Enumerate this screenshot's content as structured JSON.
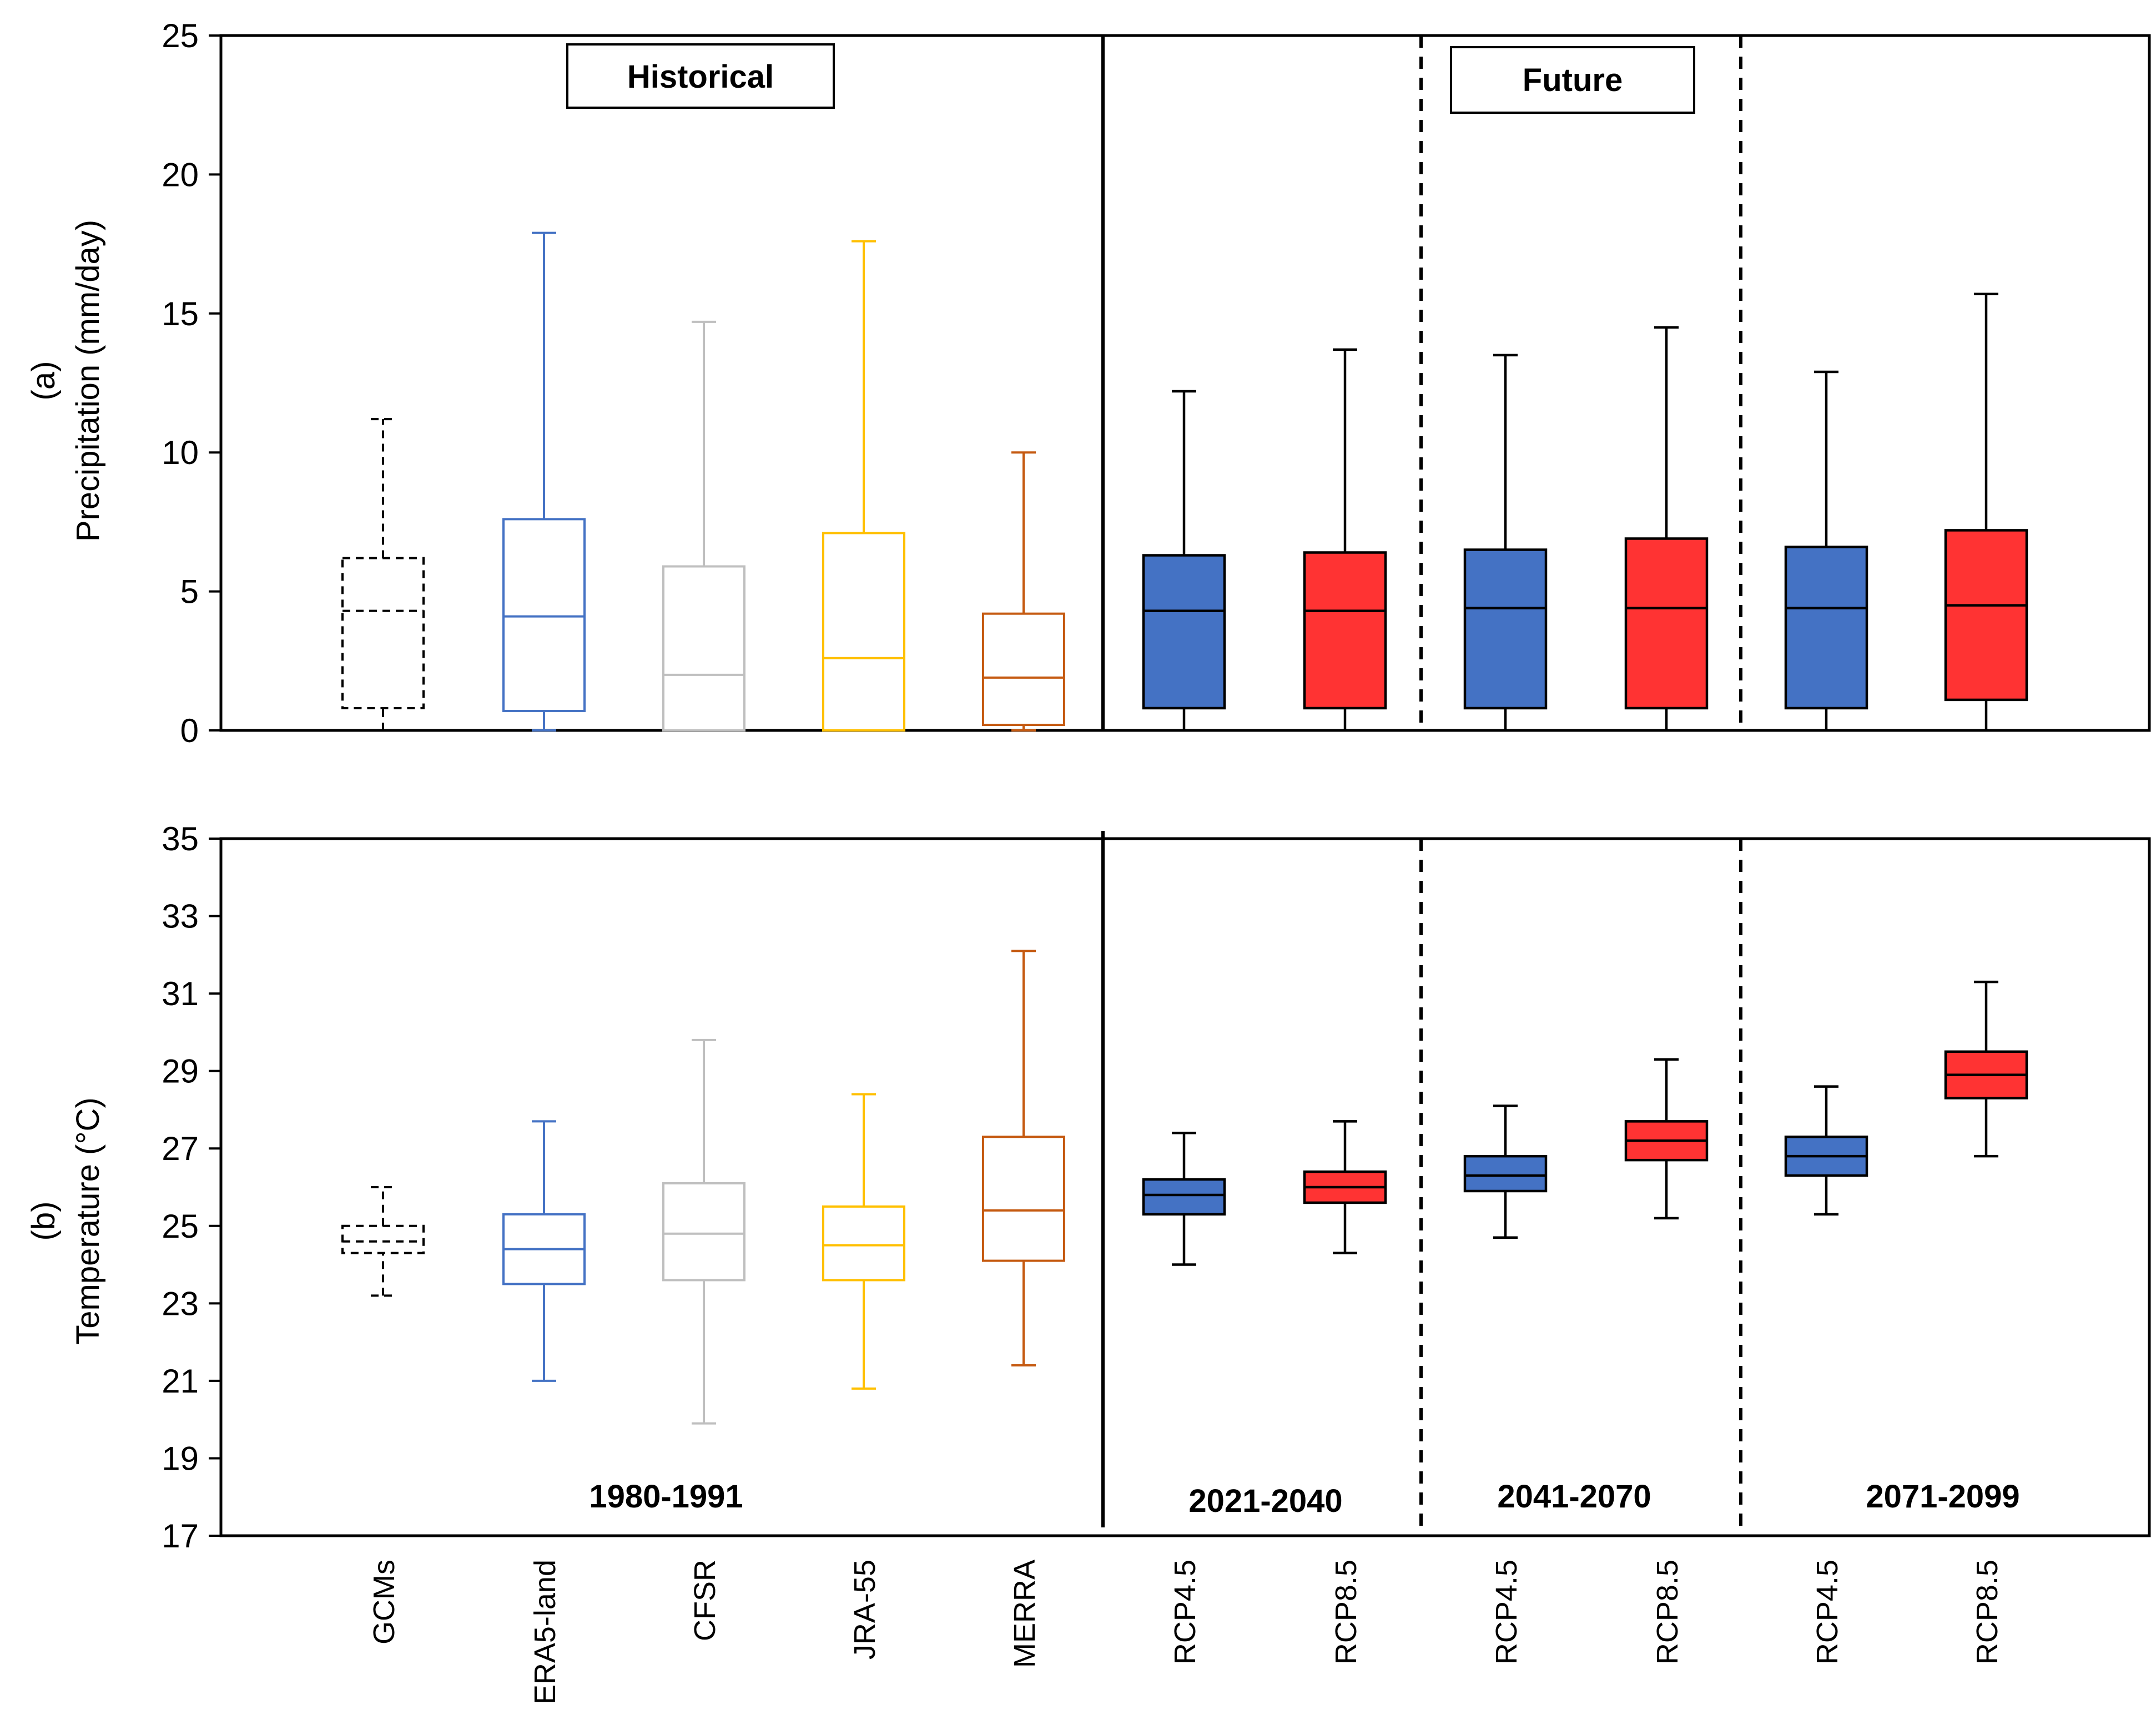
{
  "chart_data": [
    {
      "type": "box",
      "panel_label": "(a)",
      "ylabel": "Precipitation (mm/day)",
      "ylim": [
        0,
        25
      ],
      "yticks": [
        0,
        5,
        10,
        15,
        20,
        25
      ],
      "categories": [
        "GCMs",
        "ERA5-land",
        "CFSR",
        "JRA-55",
        "MERRA",
        "RCP4.5",
        "RCP8.5",
        "RCP4.5",
        "RCP8.5",
        "RCP4.5",
        "RCP8.5"
      ],
      "group_titles": [
        "Historical",
        "Future"
      ],
      "boxes": [
        {
          "category": "GCMs",
          "min": 0.0,
          "q1": 0.8,
          "median": 4.3,
          "q3": 6.2,
          "max": 11.2,
          "color": "#000000",
          "fill": "none",
          "style": "dashed"
        },
        {
          "category": "ERA5-land",
          "min": 0.0,
          "q1": 0.7,
          "median": 4.1,
          "q3": 7.6,
          "max": 17.9,
          "color": "#4472C4",
          "fill": "none",
          "style": "solid"
        },
        {
          "category": "CFSR",
          "min": 0.0,
          "q1": 0.0,
          "median": 2.0,
          "q3": 5.9,
          "max": 14.7,
          "color": "#BFBFBF",
          "fill": "none",
          "style": "solid"
        },
        {
          "category": "JRA-55",
          "min": 0.0,
          "q1": 0.0,
          "median": 2.6,
          "q3": 7.1,
          "max": 17.6,
          "color": "#FFC000",
          "fill": "none",
          "style": "solid"
        },
        {
          "category": "MERRA",
          "min": 0.0,
          "q1": 0.2,
          "median": 1.9,
          "q3": 4.2,
          "max": 10.0,
          "color": "#C55A11",
          "fill": "none",
          "style": "solid"
        },
        {
          "category": "RCP4.5",
          "min": 0.0,
          "q1": 0.8,
          "median": 4.3,
          "q3": 6.3,
          "max": 12.2,
          "color": "#000000",
          "fill": "#4472C4",
          "style": "solid"
        },
        {
          "category": "RCP8.5",
          "min": 0.0,
          "q1": 0.8,
          "median": 4.3,
          "q3": 6.4,
          "max": 13.7,
          "color": "#000000",
          "fill": "#FF3333",
          "style": "solid"
        },
        {
          "category": "RCP4.5",
          "min": 0.0,
          "q1": 0.8,
          "median": 4.4,
          "q3": 6.5,
          "max": 13.5,
          "color": "#000000",
          "fill": "#4472C4",
          "style": "solid"
        },
        {
          "category": "RCP8.5",
          "min": 0.0,
          "q1": 0.8,
          "median": 4.4,
          "q3": 6.9,
          "max": 14.5,
          "color": "#000000",
          "fill": "#FF3333",
          "style": "solid"
        },
        {
          "category": "RCP4.5",
          "min": 0.0,
          "q1": 0.8,
          "median": 4.4,
          "q3": 6.6,
          "max": 12.9,
          "color": "#000000",
          "fill": "#4472C4",
          "style": "solid"
        },
        {
          "category": "RCP8.5",
          "min": 0.0,
          "q1": 1.1,
          "median": 4.5,
          "q3": 7.2,
          "max": 15.7,
          "color": "#000000",
          "fill": "#FF3333",
          "style": "solid"
        }
      ]
    },
    {
      "type": "box",
      "panel_label": "(b)",
      "ylabel": "Temperature (°C)",
      "ylim": [
        17,
        35
      ],
      "yticks": [
        17,
        19,
        21,
        23,
        25,
        27,
        29,
        31,
        33,
        35
      ],
      "categories": [
        "GCMs",
        "ERA5-land",
        "CFSR",
        "JRA-55",
        "MERRA",
        "RCP4.5",
        "RCP8.5",
        "RCP4.5",
        "RCP8.5",
        "RCP4.5",
        "RCP8.5"
      ],
      "period_labels": [
        "1980-1991",
        "2021-2040",
        "2041-2070",
        "2071-2099"
      ],
      "boxes": [
        {
          "category": "GCMs",
          "min": 23.2,
          "q1": 24.3,
          "median": 24.6,
          "q3": 25.0,
          "max": 26.0,
          "color": "#000000",
          "fill": "none",
          "style": "dashed"
        },
        {
          "category": "ERA5-land",
          "min": 21.0,
          "q1": 23.5,
          "median": 24.4,
          "q3": 25.3,
          "max": 27.7,
          "color": "#4472C4",
          "fill": "none",
          "style": "solid"
        },
        {
          "category": "CFSR",
          "min": 19.9,
          "q1": 23.6,
          "median": 24.8,
          "q3": 26.1,
          "max": 29.8,
          "color": "#BFBFBF",
          "fill": "none",
          "style": "solid"
        },
        {
          "category": "JRA-55",
          "min": 20.8,
          "q1": 23.6,
          "median": 24.5,
          "q3": 25.5,
          "max": 28.4,
          "color": "#FFC000",
          "fill": "none",
          "style": "solid"
        },
        {
          "category": "MERRA",
          "min": 21.4,
          "q1": 24.1,
          "median": 25.4,
          "q3": 27.3,
          "max": 32.1,
          "color": "#C55A11",
          "fill": "none",
          "style": "solid"
        },
        {
          "category": "RCP4.5",
          "min": 24.0,
          "q1": 25.3,
          "median": 25.8,
          "q3": 26.2,
          "max": 27.4,
          "color": "#000000",
          "fill": "#4472C4",
          "style": "solid"
        },
        {
          "category": "RCP8.5",
          "min": 24.3,
          "q1": 25.6,
          "median": 26.0,
          "q3": 26.4,
          "max": 27.7,
          "color": "#000000",
          "fill": "#FF3333",
          "style": "solid"
        },
        {
          "category": "RCP4.5",
          "min": 24.7,
          "q1": 25.9,
          "median": 26.3,
          "q3": 26.8,
          "max": 28.1,
          "color": "#000000",
          "fill": "#4472C4",
          "style": "solid"
        },
        {
          "category": "RCP8.5",
          "min": 25.2,
          "q1": 26.7,
          "median": 27.2,
          "q3": 27.7,
          "max": 29.3,
          "color": "#000000",
          "fill": "#FF3333",
          "style": "solid"
        },
        {
          "category": "RCP4.5",
          "min": 25.3,
          "q1": 26.3,
          "median": 26.8,
          "q3": 27.3,
          "max": 28.6,
          "color": "#000000",
          "fill": "#4472C4",
          "style": "solid"
        },
        {
          "category": "RCP8.5",
          "min": 26.8,
          "q1": 28.3,
          "median": 28.9,
          "q3": 29.5,
          "max": 31.3,
          "color": "#000000",
          "fill": "#FF3333",
          "style": "solid"
        }
      ]
    }
  ]
}
